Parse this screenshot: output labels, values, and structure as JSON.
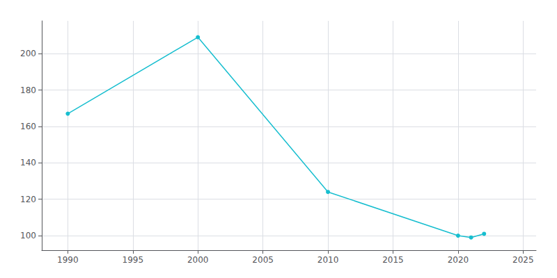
{
  "chart_data": {
    "type": "line",
    "x": [
      1990,
      2000,
      2010,
      2020,
      2021,
      2022
    ],
    "values": [
      167,
      209,
      124,
      100,
      99,
      101
    ],
    "color": "#17becf",
    "marker": "circle",
    "xlim": [
      1988,
      2026
    ],
    "ylim": [
      92,
      218
    ],
    "xticks": [
      1990,
      1995,
      2000,
      2005,
      2010,
      2015,
      2020,
      2025
    ],
    "yticks": [
      100,
      120,
      140,
      160,
      180,
      200
    ],
    "grid": true
  }
}
